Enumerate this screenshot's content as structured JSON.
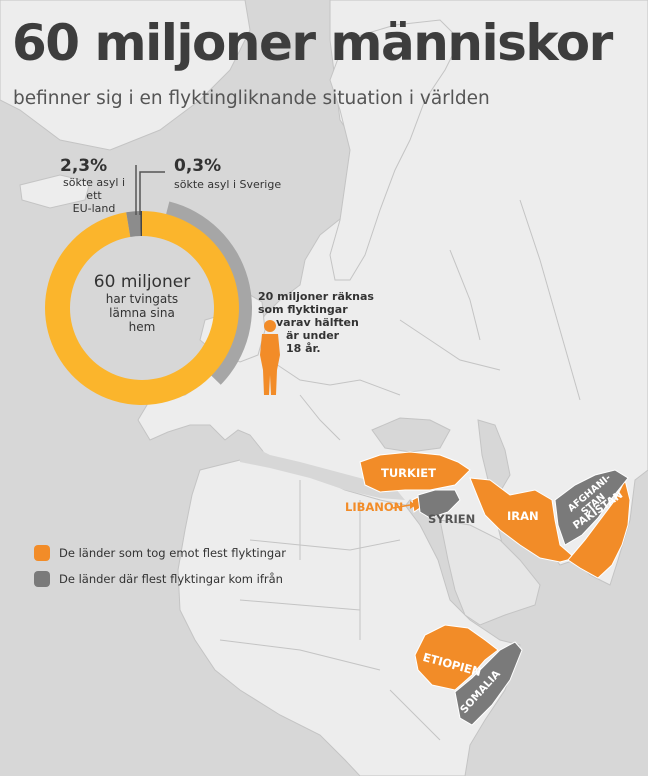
{
  "title": "60 miljoner människor",
  "subtitle": "befinner sig i en flyktingliknande situation i världen",
  "donut": {
    "center_big": "60 miljoner",
    "center_lines": [
      "har tvingats",
      "lämna sina",
      "hem"
    ],
    "eu_pct": "2,3%",
    "eu_desc": [
      "sökte asyl i ett",
      "EU-land"
    ],
    "se_pct": "0,3%",
    "se_desc": "sökte asyl i Sverige",
    "eu_fraction": 0.023,
    "se_fraction": 0.003,
    "children_fraction": 0.333,
    "colors": {
      "main": "#fbb52c",
      "eu": "#8c8c8c",
      "sweden": "#444444",
      "children_arc": "#a6a6a6"
    }
  },
  "children_note": [
    "20 miljoner räknas",
    "som  flyktingar",
    "varav hälften",
    "är under",
    "18 år."
  ],
  "legend": [
    {
      "label": "De länder som tog emot flest flyktingar",
      "color": "#f28c28"
    },
    {
      "label": "De länder där flest flyktingar kom ifrån",
      "color": "#7a7a7a"
    }
  ],
  "countries": {
    "receiving": [
      "TURKIET",
      "IRAN",
      "PAKISTAN",
      "ETIOPIEN",
      "LIBANON"
    ],
    "origin": [
      "SYRIEN",
      "AFGHANI-",
      "STAN",
      "SOMALIA"
    ]
  },
  "map_colors": {
    "land": "#ededed",
    "sea": "#d7d7d7",
    "border": "#c4c4c4",
    "receiving": "#f28c28",
    "origin": "#7a7a7a"
  },
  "icons": {
    "child": "child-silhouette-icon",
    "arrow": "arrow-right-icon"
  }
}
